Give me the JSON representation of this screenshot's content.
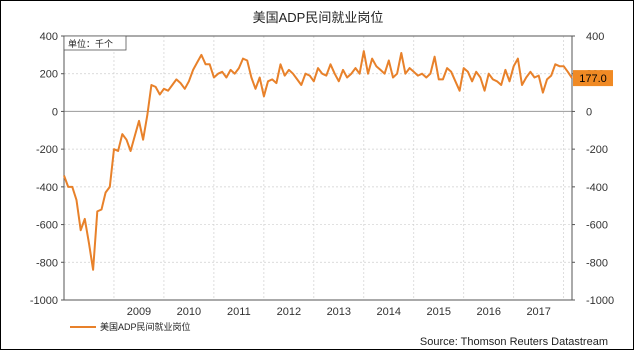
{
  "chart_data": {
    "type": "line",
    "title": "美国ADP民间就业岗位",
    "unit_label": "单位：千个",
    "source": "Source: Thomson Reuters Datastream",
    "ylim": [
      -1000,
      400
    ],
    "yticks": [
      400,
      200,
      0,
      -200,
      -400,
      -600,
      -800,
      -1000
    ],
    "xlim": [
      "2008-01",
      "2018-03"
    ],
    "xtick_labels": [
      "2009",
      "2010",
      "2011",
      "2012",
      "2013",
      "2014",
      "2015",
      "2016",
      "2017"
    ],
    "grid": true,
    "legend_placement": "bottom-left",
    "last_value_label": "177.0",
    "colors": {
      "line": "#e8812a",
      "last_label_bg": "#f08a24",
      "zero_line": "#9a9a9a",
      "grid": "#cfcfcf"
    },
    "series": [
      {
        "name": "美国ADP民间就业岗位",
        "x": [
          "2008-01",
          "2008-02",
          "2008-03",
          "2008-04",
          "2008-05",
          "2008-06",
          "2008-07",
          "2008-08",
          "2008-09",
          "2008-10",
          "2008-11",
          "2008-12",
          "2009-01",
          "2009-02",
          "2009-03",
          "2009-04",
          "2009-05",
          "2009-06",
          "2009-07",
          "2009-08",
          "2009-09",
          "2009-10",
          "2009-11",
          "2009-12",
          "2010-01",
          "2010-02",
          "2010-03",
          "2010-04",
          "2010-05",
          "2010-06",
          "2010-07",
          "2010-08",
          "2010-09",
          "2010-10",
          "2010-11",
          "2010-12",
          "2011-01",
          "2011-02",
          "2011-03",
          "2011-04",
          "2011-05",
          "2011-06",
          "2011-07",
          "2011-08",
          "2011-09",
          "2011-10",
          "2011-11",
          "2011-12",
          "2012-01",
          "2012-02",
          "2012-03",
          "2012-04",
          "2012-05",
          "2012-06",
          "2012-07",
          "2012-08",
          "2012-09",
          "2012-10",
          "2012-11",
          "2012-12",
          "2013-01",
          "2013-02",
          "2013-03",
          "2013-04",
          "2013-05",
          "2013-06",
          "2013-07",
          "2013-08",
          "2013-09",
          "2013-10",
          "2013-11",
          "2013-12",
          "2014-01",
          "2014-02",
          "2014-03",
          "2014-04",
          "2014-05",
          "2014-06",
          "2014-07",
          "2014-08",
          "2014-09",
          "2014-10",
          "2014-11",
          "2014-12",
          "2015-01",
          "2015-02",
          "2015-03",
          "2015-04",
          "2015-05",
          "2015-06",
          "2015-07",
          "2015-08",
          "2015-09",
          "2015-10",
          "2015-11",
          "2015-12",
          "2016-01",
          "2016-02",
          "2016-03",
          "2016-04",
          "2016-05",
          "2016-06",
          "2016-07",
          "2016-08",
          "2016-09",
          "2016-10",
          "2016-11",
          "2016-12",
          "2017-01",
          "2017-02",
          "2017-03",
          "2017-04",
          "2017-05",
          "2017-06",
          "2017-07",
          "2017-08",
          "2017-09",
          "2017-10",
          "2017-11",
          "2017-12",
          "2018-01",
          "2018-02",
          "2018-03"
        ],
        "values": [
          -340,
          -400,
          -400,
          -470,
          -630,
          -570,
          -700,
          -840,
          -530,
          -520,
          -430,
          -400,
          -200,
          -210,
          -120,
          -150,
          -210,
          -130,
          -50,
          -150,
          -20,
          140,
          130,
          90,
          120,
          110,
          140,
          170,
          150,
          120,
          160,
          220,
          260,
          300,
          250,
          250,
          180,
          200,
          210,
          180,
          220,
          200,
          230,
          280,
          270,
          180,
          120,
          180,
          80,
          160,
          170,
          150,
          250,
          190,
          220,
          200,
          170,
          140,
          200,
          190,
          160,
          230,
          200,
          190,
          250,
          200,
          160,
          220,
          180,
          200,
          230,
          200,
          320,
          200,
          280,
          240,
          220,
          200,
          270,
          180,
          200,
          310,
          200,
          230,
          210,
          190,
          200,
          180,
          200,
          290,
          170,
          170,
          230,
          210,
          160,
          110,
          230,
          210,
          160,
          210,
          180,
          110,
          200,
          170,
          160,
          140,
          220,
          160,
          240,
          280,
          140,
          180,
          210,
          180,
          190,
          100,
          170,
          190,
          250,
          240,
          240,
          210,
          177
        ]
      }
    ]
  }
}
